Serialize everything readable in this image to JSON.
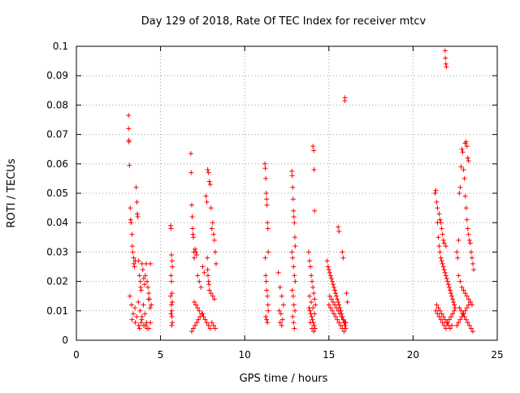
{
  "chart_data": {
    "type": "scatter",
    "title": "Day 129 of 2018, Rate Of TEC Index for receiver mtcv",
    "xlabel": "GPS time / hours",
    "ylabel": "ROTI / TECUs",
    "xlim": [
      0,
      25
    ],
    "ylim": [
      0,
      0.1
    ],
    "xticks": [
      0,
      5,
      10,
      15,
      20,
      25
    ],
    "xtick_labels": [
      "0",
      "5",
      "10",
      "15",
      "20",
      "25"
    ],
    "yticks": [
      0,
      0.01,
      0.02,
      0.03,
      0.04,
      0.05,
      0.06,
      0.07,
      0.08,
      0.09,
      0.1
    ],
    "ytick_labels": [
      "0",
      "0.01",
      "0.02",
      "0.03",
      "0.04",
      "0.05",
      "0.06",
      "0.07",
      "0.08",
      "0.09",
      "0.1"
    ],
    "grid": true,
    "legend": "none",
    "marker": "+",
    "color": "#ff0000",
    "series": [
      {
        "x": [
          3.1,
          3.1,
          3.12,
          3.12,
          3.15,
          3.2,
          3.22,
          3.25,
          3.3,
          3.32,
          3.35,
          3.4,
          3.42,
          3.45,
          3.5,
          3.55,
          3.6,
          3.62,
          3.65,
          3.7,
          3.75,
          3.8,
          3.82,
          3.85,
          3.9,
          3.95,
          4.0,
          4.05,
          4.1,
          4.15,
          4.2,
          4.25,
          4.3,
          4.35,
          4.4,
          4.45,
          3.18,
          3.28,
          3.38,
          3.48,
          3.58,
          3.68,
          3.78,
          3.88,
          3.98,
          4.08,
          4.18,
          4.28,
          4.38,
          3.7,
          3.75,
          3.85,
          4.0,
          4.2,
          4.4,
          3.3,
          3.5,
          3.9,
          4.1,
          4.3
        ],
        "y": [
          0.0765,
          0.072,
          0.068,
          0.0675,
          0.0595,
          0.045,
          0.041,
          0.04,
          0.036,
          0.032,
          0.03,
          0.028,
          0.026,
          0.025,
          0.027,
          0.052,
          0.047,
          0.043,
          0.042,
          0.027,
          0.022,
          0.02,
          0.018,
          0.017,
          0.026,
          0.024,
          0.021,
          0.019,
          0.022,
          0.026,
          0.02,
          0.018,
          0.016,
          0.014,
          0.026,
          0.012,
          0.015,
          0.012,
          0.009,
          0.011,
          0.008,
          0.013,
          0.01,
          0.007,
          0.012,
          0.009,
          0.006,
          0.014,
          0.011,
          0.005,
          0.004,
          0.006,
          0.005,
          0.004,
          0.006,
          0.007,
          0.006,
          0.008,
          0.005,
          0.004
        ]
      },
      {
        "x": [
          5.6,
          5.62,
          5.65,
          5.68,
          5.7,
          5.62,
          5.65,
          5.68,
          5.6,
          5.7,
          5.64,
          5.66,
          5.62,
          5.68,
          5.7,
          5.66
        ],
        "y": [
          0.039,
          0.038,
          0.029,
          0.027,
          0.025,
          0.022,
          0.02,
          0.016,
          0.015,
          0.013,
          0.012,
          0.01,
          0.009,
          0.008,
          0.006,
          0.005
        ]
      },
      {
        "x": [
          6.8,
          6.82,
          6.85,
          6.88,
          6.9,
          6.92,
          6.95,
          6.98,
          7.0,
          7.05,
          7.1,
          7.15,
          7.2,
          7.3,
          7.4,
          7.5,
          7.6,
          7.7,
          7.75,
          7.8,
          7.85,
          7.9,
          7.95,
          8.0,
          8.05,
          8.1,
          8.15,
          8.2,
          8.25,
          8.3,
          7.78,
          7.8,
          7.82,
          7.85,
          7.88,
          7.9,
          8.0,
          8.1,
          8.2,
          7.0,
          7.1,
          7.2,
          7.3,
          7.45,
          7.55,
          7.65,
          7.75,
          7.85,
          7.95,
          8.05,
          8.15,
          8.25,
          6.85,
          6.95,
          7.05,
          7.15,
          7.25,
          7.35,
          7.5
        ],
        "y": [
          0.0635,
          0.057,
          0.046,
          0.042,
          0.038,
          0.036,
          0.035,
          0.03,
          0.028,
          0.031,
          0.03,
          0.029,
          0.022,
          0.02,
          0.018,
          0.025,
          0.023,
          0.049,
          0.047,
          0.058,
          0.057,
          0.054,
          0.053,
          0.045,
          0.038,
          0.04,
          0.036,
          0.034,
          0.03,
          0.026,
          0.028,
          0.024,
          0.022,
          0.02,
          0.019,
          0.017,
          0.016,
          0.015,
          0.014,
          0.013,
          0.012,
          0.011,
          0.01,
          0.009,
          0.008,
          0.007,
          0.006,
          0.005,
          0.004,
          0.006,
          0.005,
          0.004,
          0.003,
          0.004,
          0.005,
          0.006,
          0.007,
          0.008,
          0.009
        ]
      },
      {
        "x": [
          11.2,
          11.22,
          11.25,
          11.28,
          11.3,
          11.32,
          11.35,
          11.38,
          11.4,
          11.22,
          11.25,
          11.28,
          11.3,
          11.35,
          11.38,
          11.4,
          11.25,
          11.3,
          11.35
        ],
        "y": [
          0.06,
          0.0585,
          0.055,
          0.05,
          0.048,
          0.046,
          0.04,
          0.038,
          0.03,
          0.028,
          0.022,
          0.02,
          0.017,
          0.015,
          0.012,
          0.01,
          0.008,
          0.007,
          0.006
        ]
      },
      {
        "x": [
          12.0,
          12.1,
          12.2,
          12.3,
          12.05,
          12.15,
          12.25,
          12.1,
          12.2
        ],
        "y": [
          0.023,
          0.018,
          0.015,
          0.012,
          0.01,
          0.009,
          0.007,
          0.006,
          0.005
        ]
      },
      {
        "x": [
          12.8,
          12.82,
          12.85,
          12.88,
          12.9,
          12.92,
          12.95,
          12.98,
          13.0,
          12.8,
          12.85,
          12.9,
          12.95,
          13.0,
          12.82,
          12.88,
          12.92,
          12.98,
          12.85,
          12.9,
          12.95
        ],
        "y": [
          0.0575,
          0.056,
          0.052,
          0.048,
          0.044,
          0.042,
          0.04,
          0.035,
          0.032,
          0.03,
          0.028,
          0.025,
          0.022,
          0.02,
          0.017,
          0.015,
          0.012,
          0.01,
          0.008,
          0.006,
          0.004
        ]
      },
      {
        "x": [
          13.8,
          13.85,
          13.9,
          13.95,
          14.0,
          14.05,
          14.1,
          14.15,
          14.2,
          13.82,
          13.88,
          13.92,
          13.98,
          14.02,
          14.08,
          14.12,
          14.18,
          13.85,
          13.95,
          14.05,
          14.15,
          13.9,
          14.0,
          14.1,
          14.05,
          14.1,
          14.12,
          14.15
        ],
        "y": [
          0.03,
          0.027,
          0.025,
          0.022,
          0.02,
          0.018,
          0.016,
          0.014,
          0.012,
          0.011,
          0.01,
          0.009,
          0.008,
          0.007,
          0.006,
          0.005,
          0.004,
          0.015,
          0.013,
          0.011,
          0.009,
          0.006,
          0.004,
          0.003,
          0.066,
          0.0645,
          0.058,
          0.044
        ]
      },
      {
        "x": [
          14.9,
          14.95,
          15.0,
          15.05,
          15.1,
          15.15,
          15.2,
          15.25,
          15.3,
          15.35,
          15.4,
          15.45,
          15.5,
          15.55,
          15.6,
          15.65,
          15.7,
          15.75,
          15.8,
          15.85,
          15.9,
          15.95,
          16.0,
          16.05,
          16.1,
          15.0,
          15.1,
          15.2,
          15.3,
          15.4,
          15.5,
          15.6,
          15.7,
          15.8,
          15.9,
          16.0,
          15.05,
          15.15,
          15.25,
          15.35,
          15.45,
          15.55,
          15.65,
          15.75,
          15.85,
          15.95,
          15.55,
          15.6,
          15.8,
          15.85,
          15.95,
          15.95
        ],
        "y": [
          0.027,
          0.025,
          0.024,
          0.023,
          0.022,
          0.021,
          0.02,
          0.019,
          0.018,
          0.017,
          0.016,
          0.015,
          0.014,
          0.013,
          0.012,
          0.011,
          0.01,
          0.009,
          0.008,
          0.007,
          0.006,
          0.005,
          0.004,
          0.016,
          0.013,
          0.012,
          0.011,
          0.01,
          0.009,
          0.008,
          0.007,
          0.006,
          0.005,
          0.004,
          0.003,
          0.006,
          0.015,
          0.014,
          0.013,
          0.012,
          0.011,
          0.01,
          0.009,
          0.008,
          0.007,
          0.006,
          0.0385,
          0.037,
          0.03,
          0.028,
          0.0825,
          0.0815
        ]
      },
      {
        "x": [
          21.3,
          21.35,
          21.4,
          21.45,
          21.5,
          21.55,
          21.6,
          21.65,
          21.7,
          21.75,
          21.8,
          21.85,
          21.9,
          21.95,
          22.0,
          22.05,
          22.1,
          22.15,
          22.2,
          22.25,
          22.3,
          22.35,
          22.4,
          22.45,
          22.5,
          21.35,
          21.45,
          21.55,
          21.65,
          21.75,
          21.85,
          21.95,
          22.05,
          22.15,
          22.25,
          22.35,
          22.45,
          21.4,
          21.5,
          21.6,
          21.7,
          21.8,
          21.9,
          22.0,
          22.1,
          22.2,
          22.3,
          21.45,
          21.55,
          21.6,
          21.65,
          21.7,
          21.75,
          21.8,
          21.85,
          21.95,
          21.9,
          21.92,
          21.95,
          21.98
        ],
        "y": [
          0.05,
          0.051,
          0.047,
          0.04,
          0.035,
          0.032,
          0.03,
          0.028,
          0.027,
          0.026,
          0.025,
          0.024,
          0.023,
          0.022,
          0.021,
          0.02,
          0.019,
          0.018,
          0.017,
          0.016,
          0.015,
          0.014,
          0.013,
          0.012,
          0.011,
          0.01,
          0.009,
          0.008,
          0.007,
          0.006,
          0.005,
          0.004,
          0.006,
          0.007,
          0.008,
          0.009,
          0.01,
          0.012,
          0.011,
          0.01,
          0.009,
          0.008,
          0.007,
          0.006,
          0.005,
          0.004,
          0.005,
          0.045,
          0.043,
          0.041,
          0.04,
          0.038,
          0.036,
          0.034,
          0.033,
          0.032,
          0.0985,
          0.096,
          0.094,
          0.093
        ]
      },
      {
        "x": [
          22.6,
          22.65,
          22.7,
          22.75,
          22.8,
          22.85,
          22.9,
          22.95,
          23.0,
          23.05,
          23.1,
          23.15,
          23.2,
          23.25,
          23.3,
          23.35,
          23.4,
          23.45,
          23.5,
          23.55,
          23.6,
          22.7,
          22.8,
          22.9,
          23.0,
          23.1,
          23.2,
          23.3,
          23.4,
          23.5,
          22.75,
          22.85,
          22.95,
          23.05,
          23.15,
          23.25,
          23.35,
          23.45,
          23.55,
          22.6,
          22.7,
          22.8,
          22.9,
          23.0,
          23.1,
          23.2,
          23.3,
          23.4,
          23.1,
          23.15,
          23.2,
          23.25,
          23.3
        ],
        "y": [
          0.03,
          0.028,
          0.034,
          0.05,
          0.052,
          0.059,
          0.065,
          0.064,
          0.058,
          0.055,
          0.049,
          0.045,
          0.041,
          0.038,
          0.036,
          0.034,
          0.033,
          0.03,
          0.028,
          0.026,
          0.024,
          0.022,
          0.02,
          0.018,
          0.017,
          0.016,
          0.015,
          0.014,
          0.013,
          0.012,
          0.011,
          0.01,
          0.009,
          0.008,
          0.007,
          0.006,
          0.005,
          0.004,
          0.003,
          0.005,
          0.006,
          0.007,
          0.008,
          0.009,
          0.01,
          0.011,
          0.012,
          0.013,
          0.067,
          0.0675,
          0.066,
          0.062,
          0.061
        ]
      }
    ]
  }
}
